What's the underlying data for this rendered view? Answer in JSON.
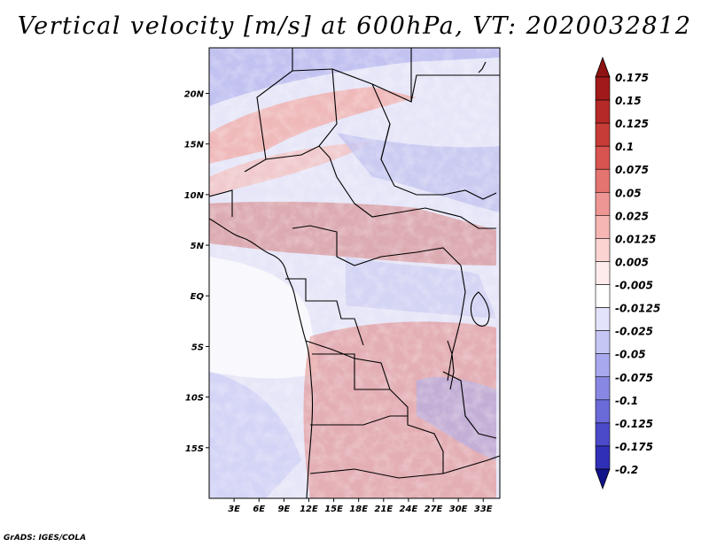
{
  "title": "Vertical velocity [m/s] at 600hPa, VT: 2020032812",
  "footer": "GrADS: IGES/COLA",
  "map": {
    "lon_range": [
      0,
      35
    ],
    "lat_range": [
      -20,
      24.5
    ],
    "lat_ticks": [
      {
        "value": 20,
        "label": "20N"
      },
      {
        "value": 15,
        "label": "15N"
      },
      {
        "value": 10,
        "label": "10N"
      },
      {
        "value": 5,
        "label": "5N"
      },
      {
        "value": 0,
        "label": "EQ"
      },
      {
        "value": -5,
        "label": "5S"
      },
      {
        "value": -10,
        "label": "10S"
      },
      {
        "value": -15,
        "label": "15S"
      }
    ],
    "lon_ticks": [
      {
        "value": 3,
        "label": "3E"
      },
      {
        "value": 6,
        "label": "6E"
      },
      {
        "value": 9,
        "label": "9E"
      },
      {
        "value": 12,
        "label": "12E"
      },
      {
        "value": 15,
        "label": "15E"
      },
      {
        "value": 18,
        "label": "18E"
      },
      {
        "value": 21,
        "label": "21E"
      },
      {
        "value": 24,
        "label": "24E"
      },
      {
        "value": 27,
        "label": "27E"
      },
      {
        "value": 30,
        "label": "30E"
      },
      {
        "value": 33,
        "label": "33E"
      }
    ]
  },
  "colorbar": {
    "levels": [
      {
        "label": "0.175",
        "color": "#a11a1a"
      },
      {
        "label": "0.15",
        "color": "#b52a28"
      },
      {
        "label": "0.125",
        "color": "#c83c37"
      },
      {
        "label": "0.1",
        "color": "#d85450"
      },
      {
        "label": "0.075",
        "color": "#e47470"
      },
      {
        "label": "0.05",
        "color": "#ee9693"
      },
      {
        "label": "0.025",
        "color": "#f6b6b4"
      },
      {
        "label": "0.0125",
        "color": "#fbd4d2"
      },
      {
        "label": "0.005",
        "color": "#fdeceb"
      },
      {
        "label": "-0.005",
        "color": "#ffffff"
      },
      {
        "label": "-0.0125",
        "color": "#e3e3fb"
      },
      {
        "label": "-0.025",
        "color": "#c6c6f5"
      },
      {
        "label": "-0.05",
        "color": "#a8a8ee"
      },
      {
        "label": "-0.075",
        "color": "#8888e4"
      },
      {
        "label": "-0.1",
        "color": "#6a6ad8"
      },
      {
        "label": "-0.125",
        "color": "#4b4bca"
      },
      {
        "label": "-0.175",
        "color": "#3030b6"
      },
      {
        "label": "-0.2",
        "color": "#1c1ca0"
      }
    ],
    "top_color": "#8e1212",
    "bottom_color": "#12128a"
  }
}
